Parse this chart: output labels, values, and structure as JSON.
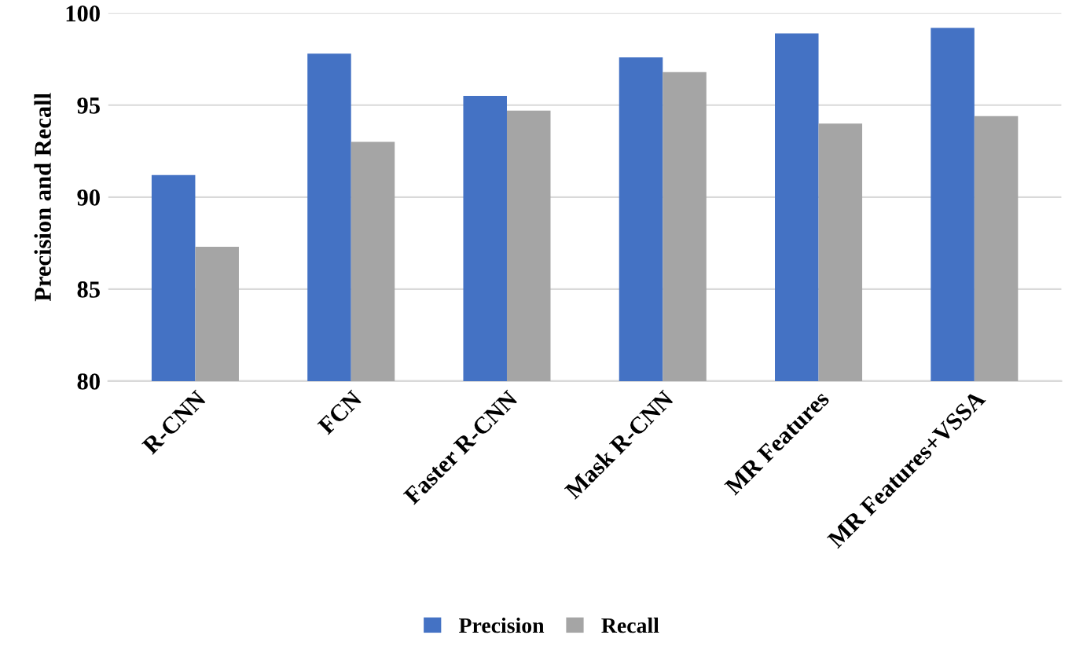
{
  "chart_data": {
    "type": "bar",
    "ylabel": "Precision and Recall",
    "categories": [
      "R-CNN",
      "FCN",
      "Faster R-CNN",
      "Mask R-CNN",
      "MR Features",
      "MR Features+VSSA"
    ],
    "series": [
      {
        "name": "Precision",
        "color": "#4472c4",
        "values": [
          91.2,
          97.8,
          95.5,
          97.6,
          98.9,
          99.2
        ]
      },
      {
        "name": "Recall",
        "color": "#a5a5a5",
        "values": [
          87.3,
          93.0,
          94.7,
          96.8,
          94.0,
          94.4
        ]
      }
    ],
    "ylim": [
      80,
      100
    ],
    "yticks": [
      80,
      85,
      90,
      95,
      100
    ],
    "grid": "y",
    "legend": "bottom"
  }
}
